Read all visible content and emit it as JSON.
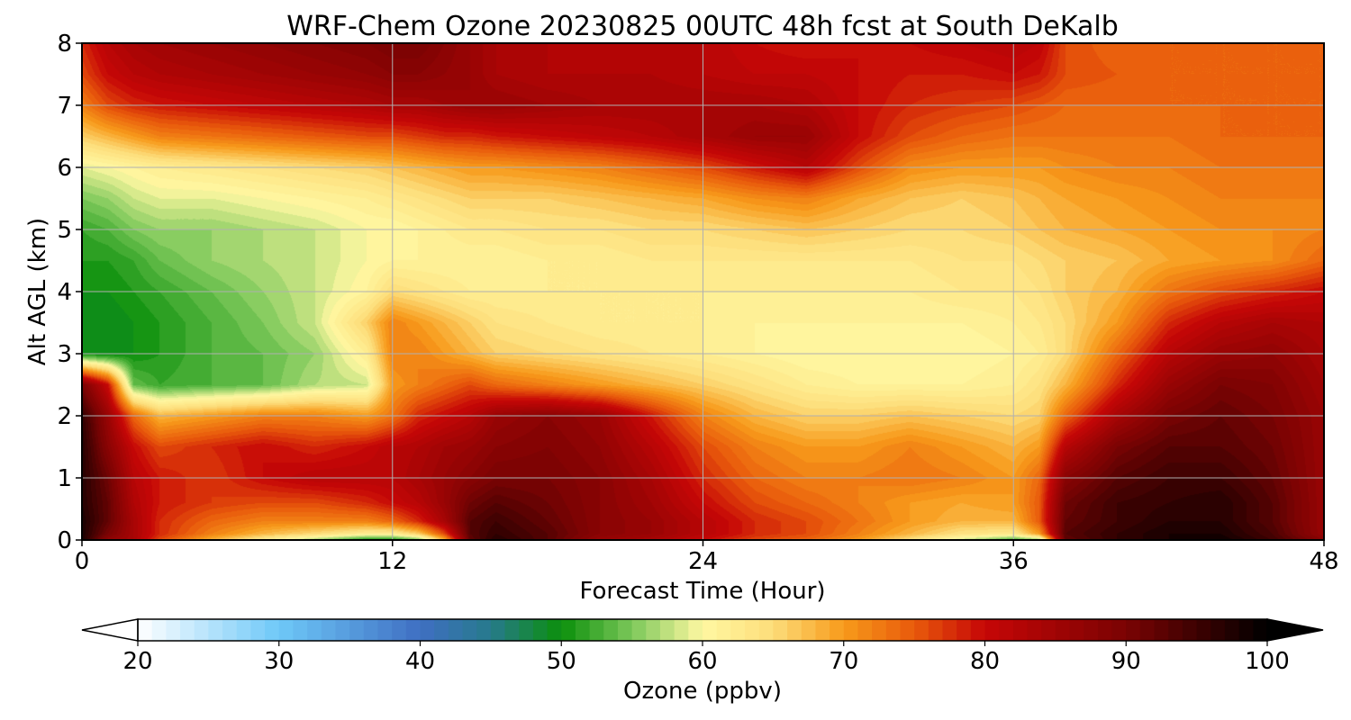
{
  "chart_data": {
    "type": "heatmap",
    "title": "WRF-Chem Ozone  20230825 00UTC 48h fcst at South DeKalb",
    "xlabel": "Forecast Time (Hour)",
    "ylabel": "Alt AGL (km)",
    "xlim": [
      0,
      48
    ],
    "ylim": [
      0,
      8
    ],
    "x_ticks": [
      0,
      12,
      24,
      36,
      48
    ],
    "y_ticks": [
      0,
      1,
      2,
      3,
      4,
      5,
      6,
      7,
      8
    ],
    "grid": true,
    "x": [
      0,
      1,
      2,
      3,
      5,
      7,
      9,
      11,
      12,
      13,
      14,
      15,
      16,
      18,
      20,
      22,
      24,
      26,
      28,
      30,
      32,
      34,
      36,
      37,
      38,
      40,
      42,
      44,
      46,
      48
    ],
    "y": [
      0,
      0.1,
      0.3,
      0.6,
      1,
      1.5,
      2,
      2.5,
      3,
      3.5,
      4,
      4.5,
      5,
      5.5,
      6,
      6.5,
      7,
      7.5,
      8
    ],
    "z": [
      [
        98,
        87,
        84,
        76,
        68,
        62,
        56,
        50,
        50,
        54,
        68,
        92,
        97,
        93,
        86,
        84,
        80,
        76,
        74,
        70,
        64,
        58,
        52,
        55,
        92,
        96,
        98,
        99,
        95,
        88
      ],
      [
        98,
        90,
        84,
        78,
        72,
        68,
        65,
        62,
        62,
        66,
        76,
        93,
        96,
        93,
        88,
        86,
        82,
        78,
        76,
        72,
        68,
        64,
        63,
        70,
        93,
        96,
        98,
        98,
        94,
        86
      ],
      [
        98,
        92,
        84,
        78,
        74,
        72,
        72,
        72,
        74,
        78,
        84,
        93,
        95,
        92,
        88,
        86,
        82,
        78,
        76,
        73,
        70,
        68,
        68,
        75,
        92,
        95,
        97,
        97,
        93,
        86
      ],
      [
        97,
        92,
        83,
        79,
        77,
        76,
        76,
        78,
        80,
        82,
        86,
        91,
        93,
        91,
        88,
        85,
        80,
        76,
        74,
        72,
        70,
        69,
        70,
        75,
        91,
        95,
        96,
        97,
        93,
        86
      ],
      [
        97,
        91,
        82,
        79,
        77,
        80,
        82,
        82,
        82,
        84,
        86,
        88,
        90,
        90,
        88,
        84,
        78,
        74,
        72,
        72,
        73,
        72,
        70,
        74,
        88,
        93,
        95,
        95,
        92,
        86
      ],
      [
        97,
        88,
        80,
        76,
        78,
        80,
        78,
        80,
        82,
        83,
        85,
        86,
        88,
        89,
        87,
        82,
        76,
        72,
        70,
        70,
        72,
        70,
        68,
        70,
        82,
        90,
        93,
        93,
        91,
        86
      ],
      [
        96,
        86,
        74,
        68,
        70,
        72,
        72,
        70,
        73,
        78,
        80,
        82,
        86,
        88,
        86,
        79,
        72,
        68,
        66,
        66,
        67,
        66,
        65,
        66,
        74,
        84,
        90,
        92,
        90,
        86
      ],
      [
        90,
        80,
        54,
        52,
        53,
        54,
        57,
        58,
        70,
        72,
        74,
        76,
        74,
        72,
        70,
        68,
        66,
        64,
        62,
        61,
        61,
        61,
        62,
        64,
        68,
        78,
        86,
        90,
        89,
        85
      ],
      [
        50,
        49,
        50,
        51,
        53,
        54,
        56,
        62,
        72,
        72,
        70,
        68,
        66,
        65,
        64,
        63,
        62,
        61,
        60,
        60,
        60,
        60,
        61,
        62,
        65,
        74,
        82,
        86,
        87,
        84
      ],
      [
        49,
        49,
        50,
        51,
        53,
        55,
        58,
        66,
        72,
        70,
        68,
        66,
        64,
        63,
        62,
        62,
        62,
        61,
        61,
        61,
        61,
        61,
        62,
        63,
        65,
        70,
        78,
        82,
        84,
        83
      ],
      [
        50,
        50,
        51,
        52,
        54,
        56,
        58,
        61,
        65,
        64,
        63,
        62,
        62,
        62,
        62,
        62,
        62,
        62,
        62,
        62,
        62,
        63,
        63,
        64,
        66,
        68,
        73,
        76,
        78,
        80
      ],
      [
        51,
        51,
        52,
        54,
        56,
        57,
        58,
        60,
        61,
        61,
        61,
        61,
        61,
        62,
        62,
        63,
        63,
        63,
        63,
        63,
        63,
        64,
        64,
        65,
        66,
        67,
        69,
        70,
        71,
        74
      ],
      [
        52,
        53,
        55,
        56,
        56,
        57,
        58,
        60,
        60,
        61,
        62,
        63,
        63,
        64,
        64,
        65,
        65,
        66,
        67,
        66,
        65,
        65,
        66,
        67,
        68,
        69,
        70,
        71,
        71,
        72
      ],
      [
        55,
        56,
        58,
        59,
        59,
        60,
        61,
        62,
        63,
        64,
        65,
        66,
        66,
        66,
        67,
        68,
        69,
        71,
        72,
        69,
        67,
        66,
        67,
        68,
        69,
        70,
        71,
        72,
        72,
        72
      ],
      [
        59,
        60,
        61,
        62,
        63,
        64,
        65,
        66,
        67,
        68,
        69,
        70,
        70,
        71,
        72,
        74,
        76,
        79,
        82,
        76,
        71,
        70,
        70,
        70,
        71,
        72,
        72,
        73,
        73,
        73
      ],
      [
        66,
        68,
        70,
        72,
        73,
        74,
        75,
        76,
        76,
        77,
        78,
        78,
        79,
        80,
        81,
        82,
        84,
        86,
        86,
        80,
        76,
        74,
        73,
        73,
        73,
        73,
        73,
        74,
        74,
        74
      ],
      [
        72,
        76,
        78,
        79,
        80,
        81,
        82,
        83,
        84,
        84,
        85,
        86,
        86,
        85,
        84,
        84,
        84,
        84,
        83,
        80,
        78,
        77,
        76,
        75,
        74,
        74,
        74,
        74,
        74,
        74
      ],
      [
        76,
        80,
        82,
        83,
        84,
        85,
        86,
        87,
        88,
        88,
        87,
        86,
        84,
        83,
        83,
        83,
        82,
        81,
        81,
        80,
        79,
        79,
        80,
        79,
        76,
        75,
        74,
        74,
        74,
        74
      ],
      [
        78,
        82,
        84,
        85,
        86,
        87,
        88,
        89,
        90,
        90,
        88,
        86,
        84,
        83,
        82,
        82,
        82,
        80,
        79,
        80,
        80,
        81,
        82,
        81,
        76,
        74,
        74,
        74,
        74,
        74
      ]
    ],
    "colorbar": {
      "label": "Ozone  (ppbv)",
      "min": 20,
      "max": 100,
      "step": 1,
      "extend": "both",
      "tick_values": [
        20,
        30,
        40,
        50,
        60,
        70,
        80,
        90,
        100
      ],
      "color_stops": [
        [
          20,
          "#ffffff"
        ],
        [
          30,
          "#6ec8f8"
        ],
        [
          40,
          "#3f6fc2"
        ],
        [
          45,
          "#277a8c"
        ],
        [
          50,
          "#0b8f0b"
        ],
        [
          55,
          "#7cc85a"
        ],
        [
          60,
          "#fff8a2"
        ],
        [
          65,
          "#fddd7a"
        ],
        [
          70,
          "#f79a1a"
        ],
        [
          75,
          "#e85a0c"
        ],
        [
          80,
          "#c60606"
        ],
        [
          90,
          "#7a0303"
        ],
        [
          100,
          "#000000"
        ]
      ]
    }
  }
}
